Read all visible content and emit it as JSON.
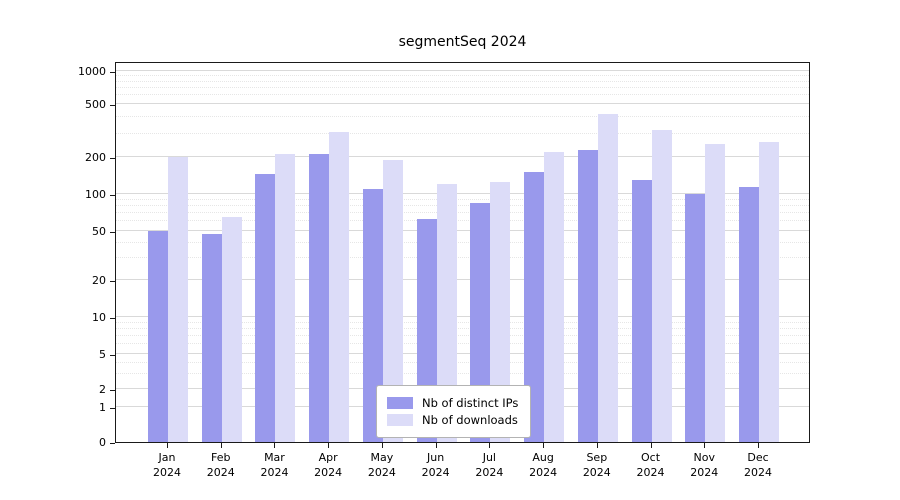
{
  "chart_data": {
    "type": "bar",
    "title": "segmentSeq 2024",
    "categories": [
      "Jan 2024",
      "Feb 2024",
      "Mar 2024",
      "Apr 2024",
      "May 2024",
      "Jun 2024",
      "Jul 2024",
      "Aug 2024",
      "Sep 2024",
      "Oct 2024",
      "Nov 2024",
      "Dec 2024"
    ],
    "series": [
      {
        "name": "Nb of distinct IPs",
        "color": "#9999ec",
        "values": [
          50,
          47,
          145,
          210,
          110,
          63,
          85,
          150,
          225,
          130,
          100,
          115
        ]
      },
      {
        "name": "Nb of downloads",
        "color": "#dcdcf8",
        "values": [
          200,
          65,
          210,
          310,
          190,
          120,
          125,
          220,
          420,
          320,
          250,
          260
        ]
      }
    ],
    "yticks": [
      0,
      1,
      2,
      5,
      10,
      20,
      50,
      100,
      200,
      500,
      1000
    ],
    "ylabel": "",
    "xlabel": "",
    "yscale": "log",
    "grid": true,
    "legend_position": "bottom-center-inside"
  }
}
